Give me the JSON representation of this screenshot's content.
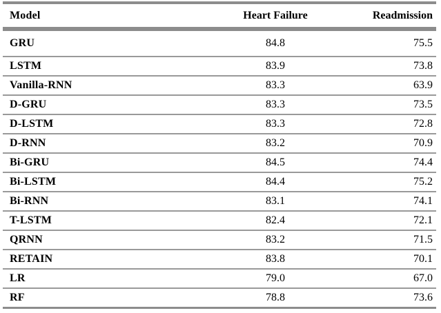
{
  "table": {
    "columns": [
      "Model",
      "Heart Failure",
      "Readmission"
    ],
    "rows": [
      {
        "model": "GRU",
        "heart_failure": "84.8",
        "readmission": "75.5"
      },
      {
        "model": "LSTM",
        "heart_failure": "83.9",
        "readmission": "73.8"
      },
      {
        "model": "Vanilla-RNN",
        "heart_failure": "83.3",
        "readmission": "63.9"
      },
      {
        "model": "D-GRU",
        "heart_failure": "83.3",
        "readmission": "73.5"
      },
      {
        "model": "D-LSTM",
        "heart_failure": "83.3",
        "readmission": "72.8"
      },
      {
        "model": "D-RNN",
        "heart_failure": "83.2",
        "readmission": "70.9"
      },
      {
        "model": "Bi-GRU",
        "heart_failure": "84.5",
        "readmission": "74.4"
      },
      {
        "model": "Bi-LSTM",
        "heart_failure": "84.4",
        "readmission": "75.2"
      },
      {
        "model": "Bi-RNN",
        "heart_failure": "83.1",
        "readmission": "74.1"
      },
      {
        "model": "T-LSTM",
        "heart_failure": "82.4",
        "readmission": "72.1"
      },
      {
        "model": "QRNN",
        "heart_failure": "83.2",
        "readmission": "71.5"
      },
      {
        "model": "RETAIN",
        "heart_failure": "83.8",
        "readmission": "70.1"
      },
      {
        "model": "LR",
        "heart_failure": "79.0",
        "readmission": "67.0"
      },
      {
        "model": "RF",
        "heart_failure": "78.8",
        "readmission": "73.6"
      }
    ]
  },
  "colors": {
    "rule": "#8c8c8c",
    "text": "#000000",
    "background": "#ffffff"
  },
  "chart_data": {
    "type": "table",
    "title": "",
    "columns": [
      "Model",
      "Heart Failure",
      "Readmission"
    ],
    "rows": [
      [
        "GRU",
        84.8,
        75.5
      ],
      [
        "LSTM",
        83.9,
        73.8
      ],
      [
        "Vanilla-RNN",
        83.3,
        63.9
      ],
      [
        "D-GRU",
        83.3,
        73.5
      ],
      [
        "D-LSTM",
        83.3,
        72.8
      ],
      [
        "D-RNN",
        83.2,
        70.9
      ],
      [
        "Bi-GRU",
        84.5,
        74.4
      ],
      [
        "Bi-LSTM",
        84.4,
        75.2
      ],
      [
        "Bi-RNN",
        83.1,
        74.1
      ],
      [
        "T-LSTM",
        82.4,
        72.1
      ],
      [
        "QRNN",
        83.2,
        71.5
      ],
      [
        "RETAIN",
        83.8,
        70.1
      ],
      [
        "LR",
        79.0,
        67.0
      ],
      [
        "RF",
        78.8,
        73.6
      ]
    ]
  }
}
